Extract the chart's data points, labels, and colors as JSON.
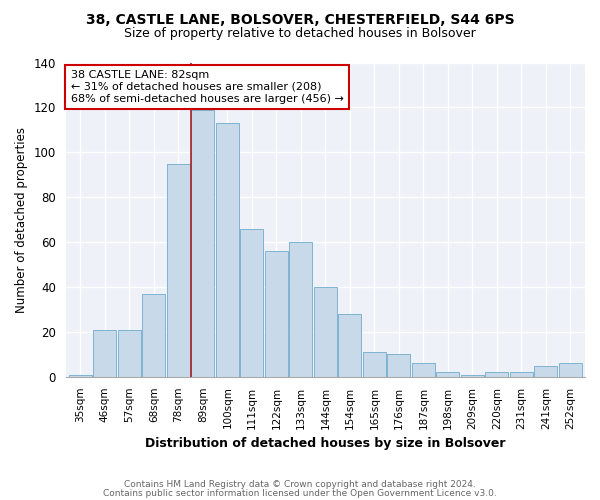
{
  "title1": "38, CASTLE LANE, BOLSOVER, CHESTERFIELD, S44 6PS",
  "title2": "Size of property relative to detached houses in Bolsover",
  "xlabel": "Distribution of detached houses by size in Bolsover",
  "ylabel": "Number of detached properties",
  "footer1": "Contains HM Land Registry data © Crown copyright and database right 2024.",
  "footer2": "Contains public sector information licensed under the Open Government Licence v3.0.",
  "bin_labels": [
    "35sqm",
    "46sqm",
    "57sqm",
    "68sqm",
    "78sqm",
    "89sqm",
    "100sqm",
    "111sqm",
    "122sqm",
    "133sqm",
    "144sqm",
    "154sqm",
    "165sqm",
    "176sqm",
    "187sqm",
    "198sqm",
    "209sqm",
    "220sqm",
    "231sqm",
    "241sqm",
    "252sqm"
  ],
  "values": [
    1,
    21,
    21,
    37,
    95,
    119,
    113,
    66,
    56,
    60,
    40,
    28,
    11,
    10,
    6,
    2,
    1,
    2,
    2,
    5,
    6
  ],
  "bar_color": "#c8daea",
  "bar_edge_color": "#7fb3d3",
  "vline_x_index": 4.5,
  "vline_color": "#aa2222",
  "annotation_text": "38 CASTLE LANE: 82sqm\n← 31% of detached houses are smaller (208)\n68% of semi-detached houses are larger (456) →",
  "annotation_box_color": "white",
  "annotation_box_edge": "#cc0000",
  "ylim": [
    0,
    140
  ],
  "yticks": [
    0,
    20,
    40,
    60,
    80,
    100,
    120,
    140
  ],
  "background_color": "#eef2f8"
}
